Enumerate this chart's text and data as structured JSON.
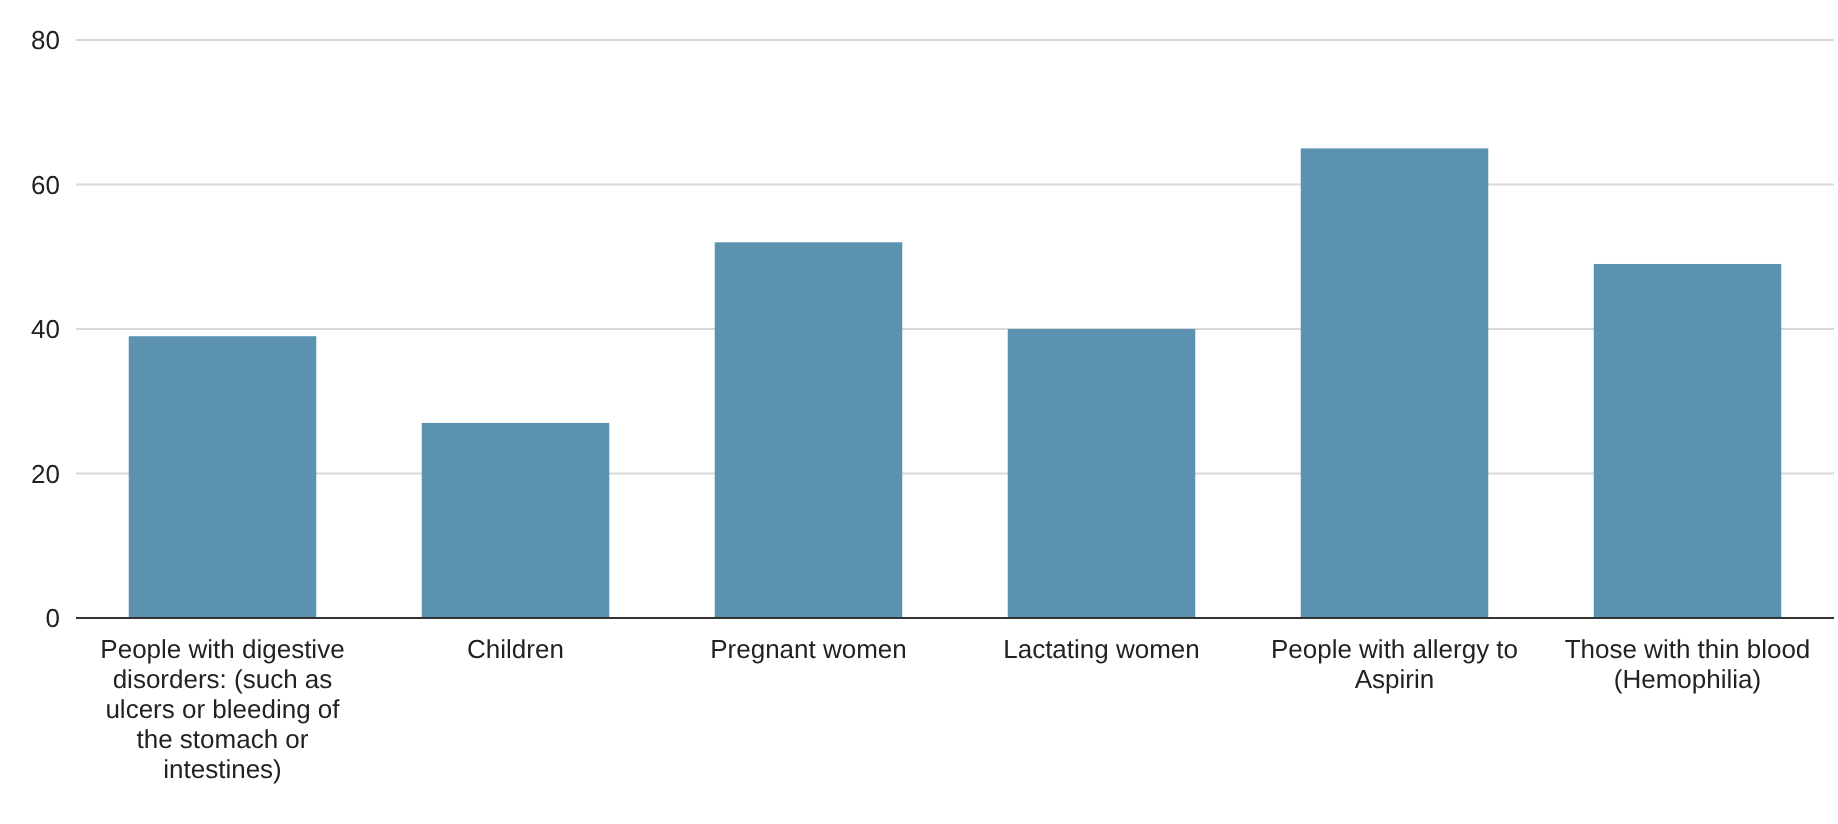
{
  "chart_data": {
    "type": "bar",
    "categories": [
      "People with digestive disorders: (such as ulcers or bleeding of the stomach or intestines)",
      "Children",
      "Pregnant women",
      "Lactating women",
      "People with allergy to Aspirin",
      "Those with thin blood (Hemophilia)"
    ],
    "values": [
      39,
      27,
      52,
      40,
      65,
      49
    ],
    "color": "#5b92b0",
    "ylim": [
      0,
      80
    ],
    "yticks": [
      0,
      20,
      40,
      60,
      80
    ],
    "grid": "y"
  }
}
